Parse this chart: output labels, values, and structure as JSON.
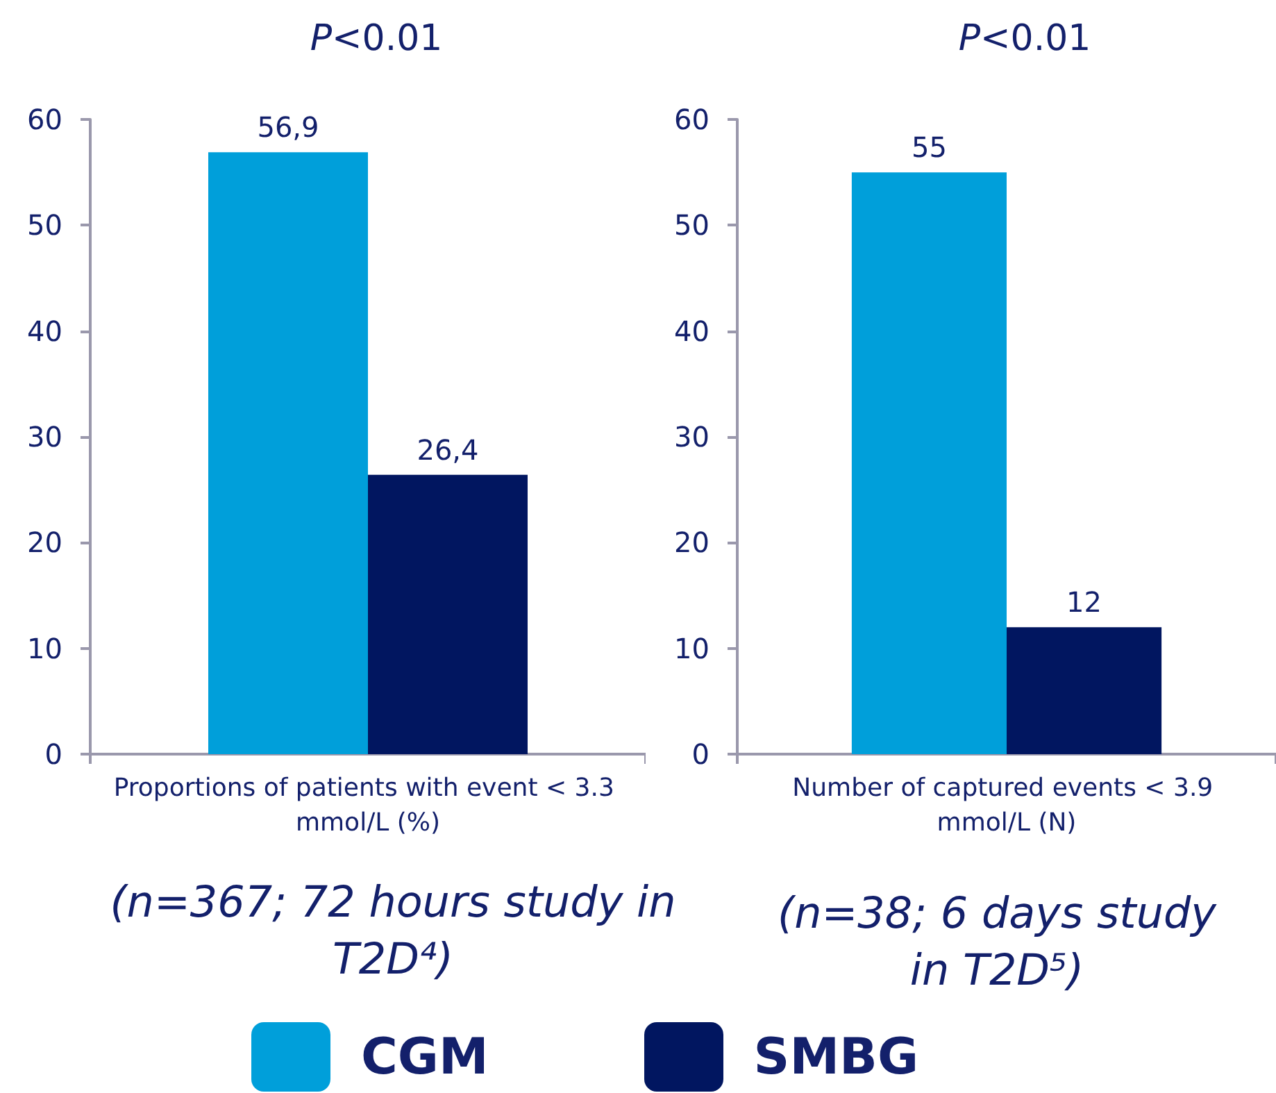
{
  "chart_data": [
    {
      "type": "bar",
      "title": "P<0.01",
      "categories": [
        "Proportions of patients with event < 3.3 mmol/L (%)"
      ],
      "series": [
        {
          "name": "CGM",
          "color": "#009fda",
          "values": [
            56.9
          ],
          "value_labels": [
            "56,9"
          ]
        },
        {
          "name": "SMBG",
          "color": "#011660",
          "values": [
            26.4
          ],
          "value_labels": [
            "26,4"
          ]
        }
      ],
      "ylim": [
        0,
        60
      ],
      "yticks": [
        0,
        10,
        20,
        30,
        40,
        50,
        60
      ],
      "grid": false,
      "legend": "bottom",
      "annotations": [
        "(n=367; 72 hours study in T2D⁴)"
      ]
    },
    {
      "type": "bar",
      "title": "P<0.01",
      "categories": [
        "Number of captured events < 3.9 mmol/L (N)"
      ],
      "series": [
        {
          "name": "CGM",
          "color": "#009fda",
          "values": [
            55
          ]
        },
        {
          "name": "SMBG",
          "color": "#011660",
          "values": [
            12
          ]
        }
      ],
      "ylim": [
        0,
        60
      ],
      "yticks": [
        0,
        10,
        20,
        30,
        40,
        50,
        60
      ],
      "grid": false,
      "legend": "bottom",
      "data_labels": true,
      "annotations": [
        "(n=38; 6 days study in T2D⁵)"
      ]
    }
  ]
}
